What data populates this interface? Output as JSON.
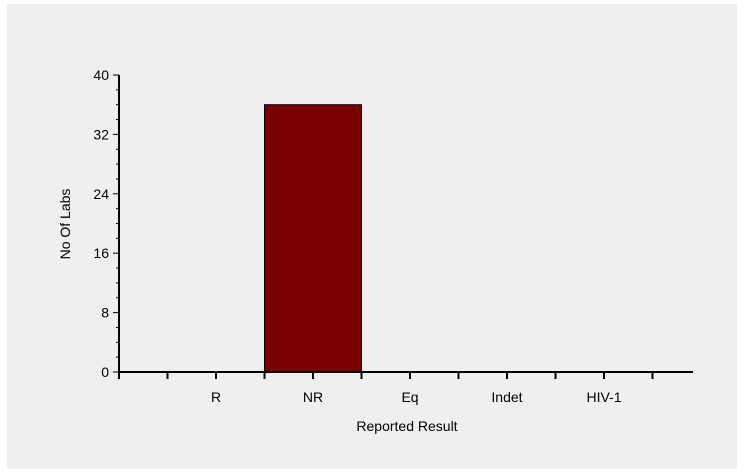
{
  "chart_data": {
    "type": "bar",
    "categories": [
      "R",
      "NR",
      "Eq",
      "Indet",
      "HIV-1"
    ],
    "values": [
      0,
      36,
      0,
      0,
      0
    ],
    "xlabel": "Reported Result",
    "ylabel": "No Of Labs",
    "ylim": [
      0,
      40
    ],
    "yticks": [
      0,
      8,
      16,
      24,
      32,
      40
    ],
    "grid": false,
    "legend": "none",
    "bar_color": "#7a0000"
  }
}
